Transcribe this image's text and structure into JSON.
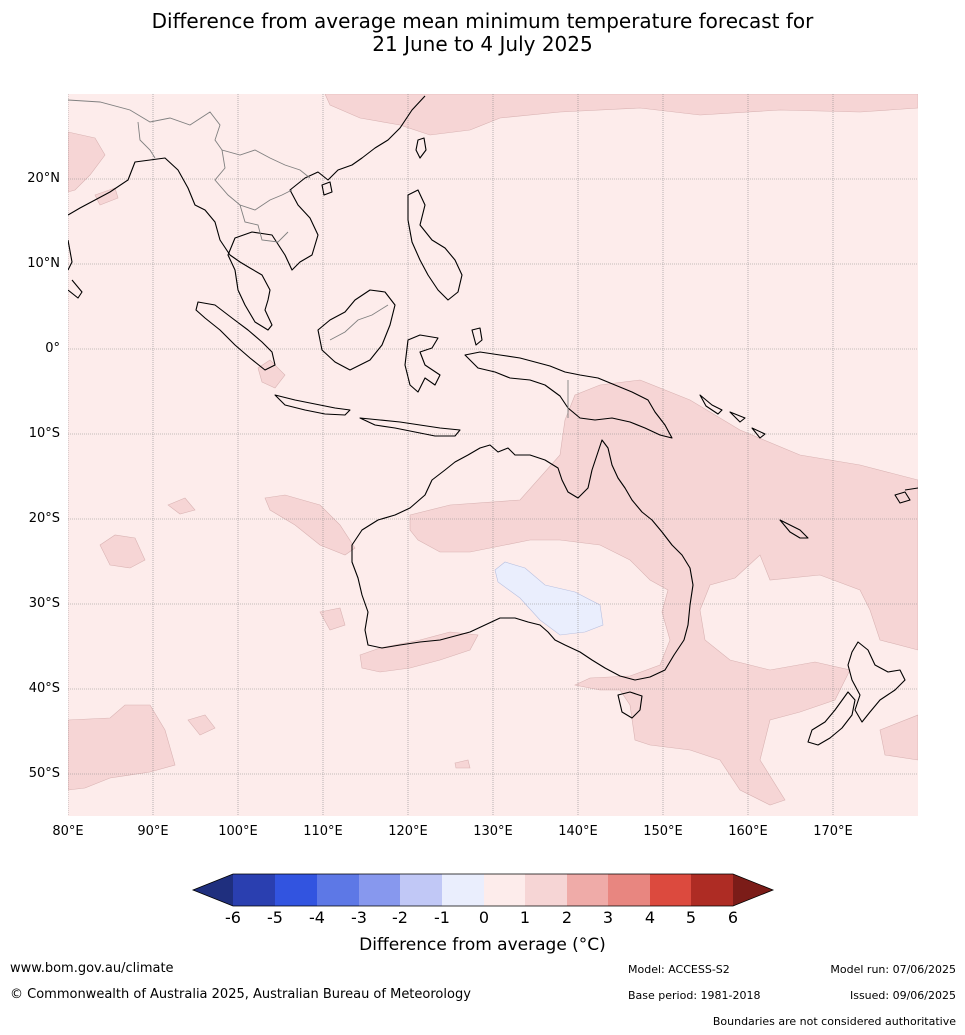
{
  "title": {
    "line1": "Difference from average mean minimum temperature forecast for",
    "line2": "21 June to 4 July 2025"
  },
  "map": {
    "projection": "equirectangular",
    "lon_range": [
      80,
      180
    ],
    "lat_range": [
      -55,
      30
    ],
    "graticule": true,
    "lon_ticks": [
      "80°E",
      "90°E",
      "100°E",
      "110°E",
      "120°E",
      "130°E",
      "140°E",
      "150°E",
      "160°E",
      "170°E"
    ],
    "lat_ticks": [
      "20°N",
      "10°N",
      "0°",
      "10°S",
      "20°S",
      "30°S",
      "40°S",
      "50°S"
    ],
    "background_category": "0 to 1",
    "anomaly_regions": [
      "0 to 1 °C across most of the domain",
      "1 to 2 °C over northeast and eastern Australia, the Coral Sea, Tasman Sea, south of Australia and the northern Pacific band",
      "-1 to 0 °C over interior southern Australia"
    ]
  },
  "colorbar": {
    "title": "Difference from average (°C)",
    "ticks": [
      "-6",
      "-5",
      "-4",
      "-3",
      "-2",
      "-1",
      "0",
      "1",
      "2",
      "3",
      "4",
      "5",
      "6"
    ],
    "colors": [
      "#1f2f7e",
      "#2a3fb0",
      "#3254e0",
      "#5d78e6",
      "#8798ee",
      "#c1c8f6",
      "#eaeefd",
      "#fdeceb",
      "#f6d5d5",
      "#efaba8",
      "#e88680",
      "#dc4a3e",
      "#ae2c24",
      "#7b1c18"
    ],
    "extend": "both"
  },
  "footer": {
    "website": "www.bom.gov.au/climate",
    "copyright": "© Commonwealth of Australia 2025, Australian Bureau of Meteorology",
    "model": "Model: ACCESS-S2",
    "base_period": "Base period: 1981-2018",
    "model_run": "Model run: 07/06/2025",
    "issued": "Issued: 09/06/2025",
    "disclaimer": "Boundaries are not considered authoritative"
  }
}
